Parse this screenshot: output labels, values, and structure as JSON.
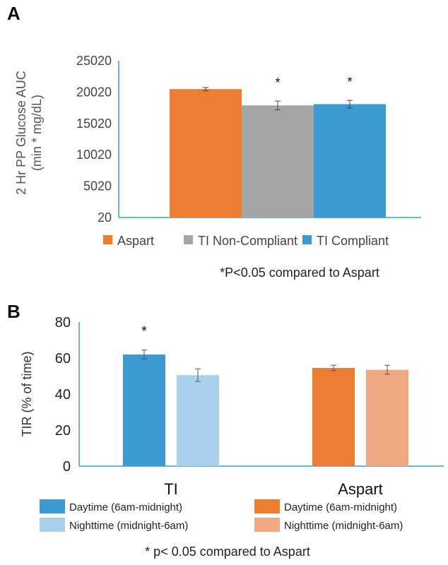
{
  "panels": {
    "a": {
      "letter": "A",
      "ylabel_line1": "2 Hr PP Glucose AUC",
      "ylabel_line2": "(min * mg/dL)",
      "legend": [
        "Aspart",
        "TI Non-Compliant",
        "TI Compliant"
      ],
      "footnote": "*P<0.05 compared to Aspart"
    },
    "b": {
      "letter": "B",
      "ylabel": "TIR (% of time)",
      "legend": [
        "Daytime (6am-midnight)",
        "Nighttime (midnight-6am)",
        "Daytime (6am-midnight)",
        "Nighttime (midnight-6am)"
      ],
      "footnote": "* p< 0.05 compared to Aspart"
    }
  },
  "chart_data": [
    {
      "type": "bar",
      "panel": "A",
      "ylabel": "2 Hr PP Glucose AUC (min * mg/dL)",
      "yticks": [
        "20",
        "5020",
        "10020",
        "15020",
        "20020",
        "25020"
      ],
      "ylim": [
        20,
        25020
      ],
      "series": [
        {
          "name": "Aspart",
          "values": [
            20500
          ],
          "error": [
            250
          ],
          "color": "#ED7D31",
          "significant": false
        },
        {
          "name": "TI Non-Compliant",
          "values": [
            17900
          ],
          "error": [
            700
          ],
          "color": "#A5A5A5",
          "significant": true
        },
        {
          "name": "TI Compliant",
          "values": [
            18100
          ],
          "error": [
            600
          ],
          "color": "#3C9AD2",
          "significant": true
        }
      ],
      "marker": "*",
      "grid": false,
      "legend_position": "bottom"
    },
    {
      "type": "bar",
      "panel": "B",
      "ylabel": "TIR (% of time)",
      "categories": [
        "TI",
        "Aspart"
      ],
      "yticks": [
        "0",
        "20",
        "40",
        "60",
        "80"
      ],
      "ylim": [
        0,
        80
      ],
      "groups": [
        {
          "category": "TI",
          "bars": [
            {
              "label": "Daytime (6am-midnight)",
              "value": 62,
              "error": 2.5,
              "color": "#3C9AD2",
              "significant": true
            },
            {
              "label": "Nighttime (midnight-6am)",
              "value": 50.5,
              "error": 3.5,
              "color": "#A9D0EB",
              "significant": false
            }
          ]
        },
        {
          "category": "Aspart",
          "bars": [
            {
              "label": "Daytime (6am-midnight)",
              "value": 54.5,
              "error": 1.5,
              "color": "#ED7D31",
              "significant": false
            },
            {
              "label": "Nighttime (midnight-6am)",
              "value": 53.5,
              "error": 2.5,
              "color": "#F0A882",
              "significant": false
            }
          ]
        }
      ],
      "marker": "*",
      "grid": false,
      "legend_position": "bottom"
    }
  ]
}
